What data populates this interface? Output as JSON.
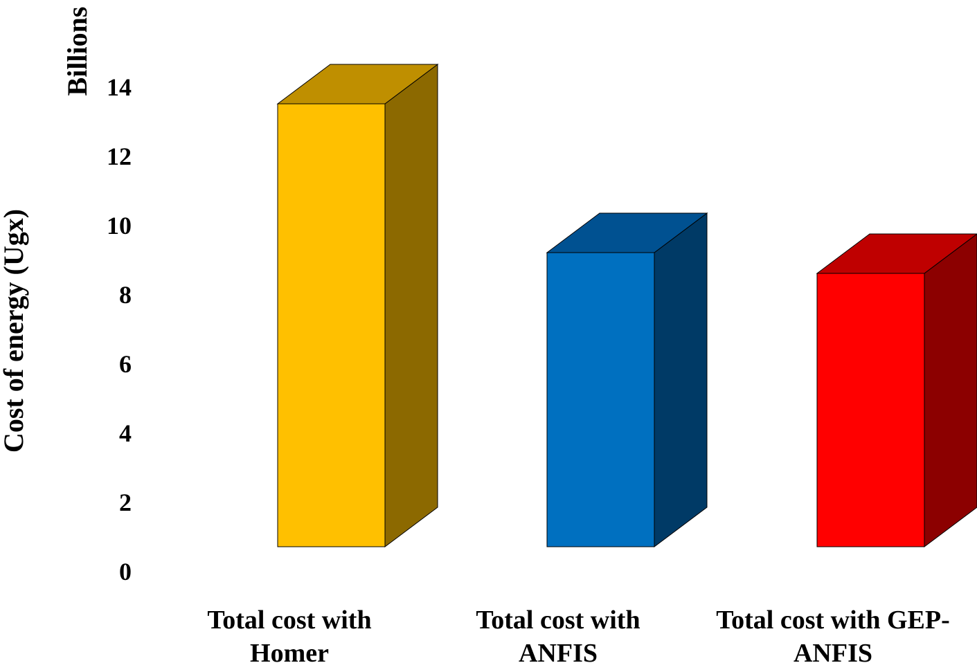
{
  "chart_data": {
    "type": "bar",
    "style": "3d-column",
    "title": "",
    "ylabel": "Cost  of energy (Ugx)",
    "yunit": "Billions",
    "xlabel": "",
    "ylim": [
      0,
      14
    ],
    "yticks": [
      0,
      2,
      4,
      6,
      8,
      10,
      12,
      14
    ],
    "grid": false,
    "legend": "none",
    "categories": [
      [
        "Total cost with",
        "Homer"
      ],
      [
        "Total cost with",
        "ANFIS"
      ],
      [
        "Total cost with GEP-",
        "ANFIS"
      ]
    ],
    "values": [
      12.8,
      8.5,
      7.9
    ],
    "colors": [
      {
        "front": "#FFC000",
        "side": "#8C6900",
        "top": "#BF8F00"
      },
      {
        "front": "#0070C0",
        "side": "#003A66",
        "top": "#005191"
      },
      {
        "front": "#FF0000",
        "side": "#8C0000",
        "top": "#BF0000"
      }
    ]
  }
}
